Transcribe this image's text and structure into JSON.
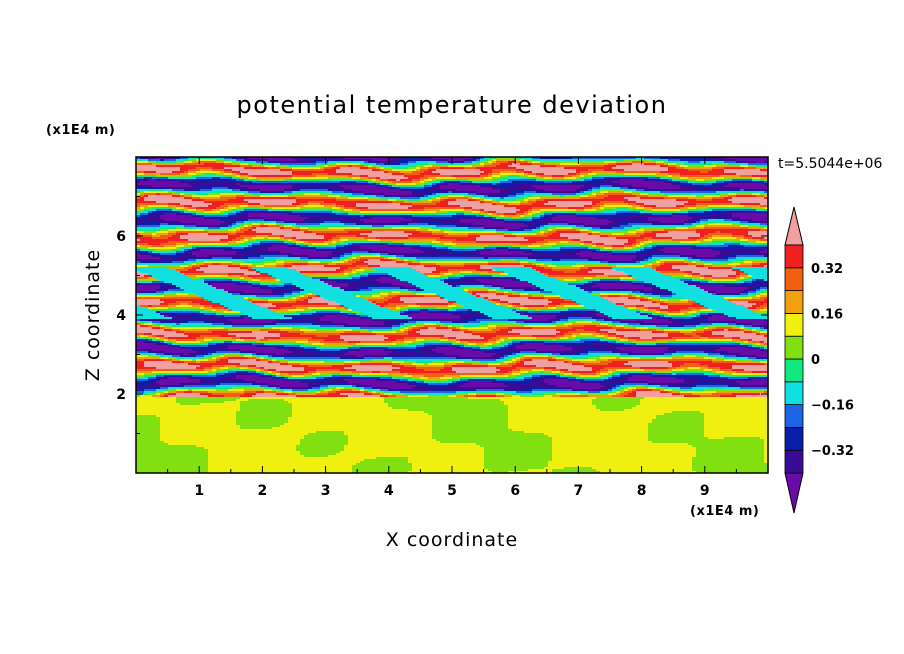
{
  "chart_data": {
    "type": "heatmap",
    "title": "potential temperature deviation",
    "xlabel": "X coordinate",
    "ylabel": "Z coordinate",
    "x_unit": "(x1E4 m)",
    "y_unit": "(x1E4 m)",
    "time_label": "t=5.5044e+06",
    "xlim": [
      0,
      10
    ],
    "ylim": [
      0,
      8
    ],
    "x_ticks": [
      "1",
      "2",
      "3",
      "4",
      "5",
      "6",
      "7",
      "8",
      "9"
    ],
    "y_ticks": [
      "2",
      "4",
      "6"
    ],
    "colorbar": {
      "levels": [
        -0.4,
        -0.32,
        -0.24,
        -0.16,
        -0.08,
        0,
        0.08,
        0.16,
        0.24,
        0.32,
        0.4
      ],
      "tick_labels": [
        "0.32",
        "0.16",
        "0",
        "-0.16",
        "-0.32"
      ],
      "colors": [
        "#6a0aa8",
        "#3a0c96",
        "#0a1ea6",
        "#1e64e6",
        "#10e0e0",
        "#10e880",
        "#80e010",
        "#f0f010",
        "#f0a010",
        "#f06010",
        "#f02020",
        "#f0a0a0"
      ],
      "extend": "both"
    },
    "structure": {
      "lower_layer": {
        "z_range": [
          0,
          1.9
        ],
        "value_range": [
          0.0,
          0.08
        ],
        "colors": [
          "#10e880",
          "#80e010"
        ]
      },
      "upper_layer": {
        "z_range": [
          1.9,
          8
        ],
        "pattern": "alternating horizontal layers",
        "value_range": [
          -0.4,
          0.4
        ]
      }
    }
  }
}
